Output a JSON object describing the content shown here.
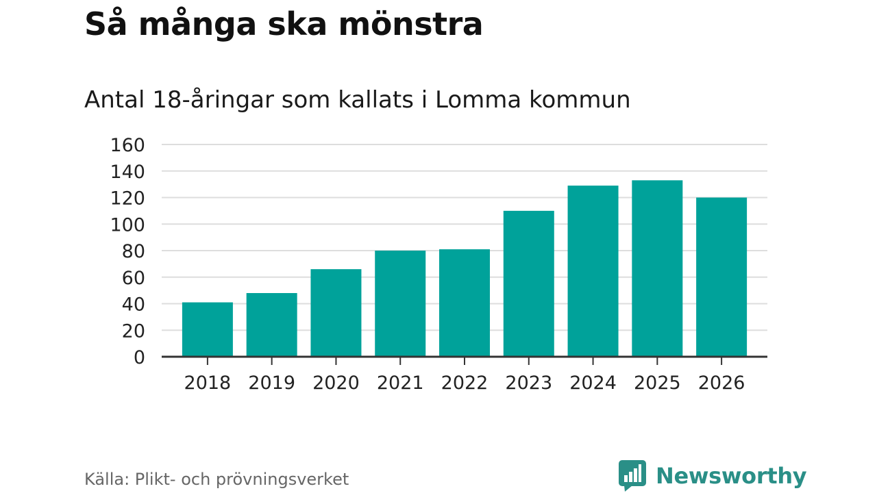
{
  "header": {
    "title": "Så många ska mönstra",
    "subtitle": "Antal 18-åringar som kallats i Lomma kommun"
  },
  "footer": {
    "source": "Källa: Plikt- och prövningsverket",
    "brand": "Newsworthy",
    "brand_icon": "bar-chart-logo-icon"
  },
  "colors": {
    "bar": "#00a29a",
    "grid": "#dddddd",
    "axis": "#333333",
    "brand": "#2a8f87"
  },
  "chart_data": {
    "type": "bar",
    "title": "Så många ska mönstra",
    "subtitle": "Antal 18-åringar som kallats i Lomma kommun",
    "xlabel": "",
    "ylabel": "",
    "categories": [
      "2018",
      "2019",
      "2020",
      "2021",
      "2022",
      "2023",
      "2024",
      "2025",
      "2026"
    ],
    "values": [
      41,
      48,
      66,
      80,
      81,
      110,
      129,
      133,
      120
    ],
    "ylim": [
      0,
      160
    ],
    "yticks": [
      0,
      20,
      40,
      60,
      80,
      100,
      120,
      140,
      160
    ],
    "grid": true,
    "legend": "none"
  }
}
